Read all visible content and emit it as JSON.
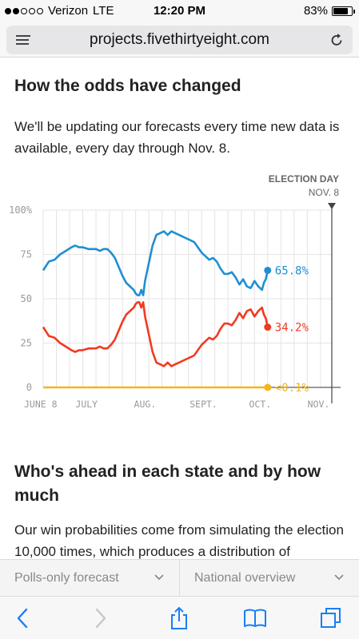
{
  "status_bar": {
    "carrier": "Verizon",
    "network": "LTE",
    "time": "12:20 PM",
    "battery": "83%",
    "battery_level": 0.83,
    "signal_bars_filled": 2,
    "signal_bars_total": 5
  },
  "browser": {
    "url": "projects.fivethirtyeight.com",
    "icons": [
      "menu-icon",
      "reload-icon",
      "back-icon",
      "forward-icon",
      "share-icon",
      "bookmarks-icon",
      "tabs-icon"
    ]
  },
  "article": {
    "heading": "How the odds have changed",
    "intro": "We'll be updating our forecasts every time new data is available, every day through Nov. 8.",
    "section_heading": "Who's ahead in each state and by how much",
    "section_text": "Our win probabilities come from simulating the election 10,000 times, which produces a distribution of"
  },
  "dropdowns": {
    "forecast": "Polls-only forecast",
    "view": "National overview"
  },
  "colors": {
    "blue": "#1f8fd1",
    "red": "#f13a22",
    "yellow": "#f2b51e",
    "grid": "#e4e4e4",
    "axis_text": "#999999"
  },
  "chart_data": {
    "type": "line",
    "annotation_title": "ELECTION DAY",
    "annotation_date": "NOV. 8",
    "y_ticks": [
      "100%",
      "75",
      "50",
      "25",
      "0"
    ],
    "y_tick_values": [
      100,
      75,
      50,
      25,
      0
    ],
    "x_ticks": [
      "JUNE 8",
      "JULY",
      "AUG.",
      "SEPT.",
      "OCT.",
      "NOV."
    ],
    "x_tick_days": [
      0,
      23,
      54,
      85,
      115,
      146
    ],
    "ylim": [
      0,
      100
    ],
    "xlim_days": [
      0,
      153
    ],
    "election_day": 153,
    "series": [
      {
        "color": "blue",
        "end_label": "65.8%",
        "points": [
          [
            0,
            66
          ],
          [
            3,
            71
          ],
          [
            6,
            72
          ],
          [
            9,
            75
          ],
          [
            12,
            77
          ],
          [
            15,
            79
          ],
          [
            17,
            80
          ],
          [
            19,
            79
          ],
          [
            21,
            79
          ],
          [
            24,
            78
          ],
          [
            26,
            78
          ],
          [
            28,
            78
          ],
          [
            30,
            77
          ],
          [
            32,
            78
          ],
          [
            34,
            78
          ],
          [
            36,
            76
          ],
          [
            38,
            73
          ],
          [
            40,
            68
          ],
          [
            42,
            63
          ],
          [
            44,
            59
          ],
          [
            46,
            57
          ],
          [
            48,
            55
          ],
          [
            49,
            53
          ],
          [
            50,
            52
          ],
          [
            51,
            52
          ],
          [
            52,
            55
          ],
          [
            53,
            52
          ],
          [
            54,
            60
          ],
          [
            56,
            70
          ],
          [
            58,
            80
          ],
          [
            60,
            86
          ],
          [
            62,
            87
          ],
          [
            64,
            88
          ],
          [
            66,
            86
          ],
          [
            68,
            88
          ],
          [
            70,
            87
          ],
          [
            72,
            86
          ],
          [
            74,
            85
          ],
          [
            76,
            84
          ],
          [
            78,
            83
          ],
          [
            80,
            82
          ],
          [
            82,
            79
          ],
          [
            84,
            76
          ],
          [
            86,
            74
          ],
          [
            88,
            72
          ],
          [
            90,
            73
          ],
          [
            92,
            71
          ],
          [
            94,
            67
          ],
          [
            96,
            64
          ],
          [
            98,
            64
          ],
          [
            100,
            65
          ],
          [
            102,
            62
          ],
          [
            104,
            58
          ],
          [
            106,
            61
          ],
          [
            108,
            57
          ],
          [
            110,
            56
          ],
          [
            112,
            60
          ],
          [
            114,
            57
          ],
          [
            115,
            56
          ],
          [
            116,
            55
          ],
          [
            117,
            59
          ],
          [
            118,
            61
          ],
          [
            119,
            66
          ]
        ]
      },
      {
        "color": "red",
        "end_label": "34.2%",
        "points": [
          [
            0,
            34
          ],
          [
            3,
            29
          ],
          [
            6,
            28
          ],
          [
            9,
            25
          ],
          [
            12,
            23
          ],
          [
            15,
            21
          ],
          [
            17,
            20
          ],
          [
            19,
            21
          ],
          [
            21,
            21
          ],
          [
            24,
            22
          ],
          [
            26,
            22
          ],
          [
            28,
            22
          ],
          [
            30,
            23
          ],
          [
            32,
            22
          ],
          [
            34,
            22
          ],
          [
            36,
            24
          ],
          [
            38,
            27
          ],
          [
            40,
            32
          ],
          [
            42,
            37
          ],
          [
            44,
            41
          ],
          [
            46,
            43
          ],
          [
            48,
            45
          ],
          [
            49,
            47
          ],
          [
            50,
            48
          ],
          [
            51,
            48
          ],
          [
            52,
            45
          ],
          [
            53,
            48
          ],
          [
            54,
            40
          ],
          [
            56,
            30
          ],
          [
            58,
            20
          ],
          [
            60,
            14
          ],
          [
            62,
            13
          ],
          [
            64,
            12
          ],
          [
            66,
            14
          ],
          [
            68,
            12
          ],
          [
            70,
            13
          ],
          [
            72,
            14
          ],
          [
            74,
            15
          ],
          [
            76,
            16
          ],
          [
            78,
            17
          ],
          [
            80,
            18
          ],
          [
            82,
            21
          ],
          [
            84,
            24
          ],
          [
            86,
            26
          ],
          [
            88,
            28
          ],
          [
            90,
            27
          ],
          [
            92,
            29
          ],
          [
            94,
            33
          ],
          [
            96,
            36
          ],
          [
            98,
            36
          ],
          [
            100,
            35
          ],
          [
            102,
            38
          ],
          [
            104,
            42
          ],
          [
            106,
            39
          ],
          [
            108,
            43
          ],
          [
            110,
            44
          ],
          [
            112,
            40
          ],
          [
            114,
            43
          ],
          [
            115,
            44
          ],
          [
            116,
            45
          ],
          [
            117,
            41
          ],
          [
            118,
            39
          ],
          [
            119,
            34
          ]
        ]
      },
      {
        "color": "yellow",
        "end_label": "<0.1%",
        "points": [
          [
            0,
            0
          ],
          [
            119,
            0
          ]
        ]
      }
    ]
  }
}
